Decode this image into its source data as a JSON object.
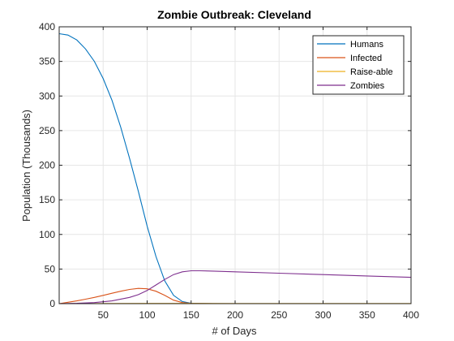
{
  "chart_data": {
    "type": "line",
    "title": "Zombie Outbreak: Cleveland",
    "xlabel": "# of Days",
    "ylabel": "Population (Thousands)",
    "xlim": [
      0,
      400
    ],
    "ylim": [
      0,
      400
    ],
    "xticks": [
      50,
      100,
      150,
      200,
      250,
      300,
      350,
      400
    ],
    "yticks": [
      0,
      50,
      100,
      150,
      200,
      250,
      300,
      350,
      400
    ],
    "grid": true,
    "legend_position": "top-right",
    "series": [
      {
        "name": "Humans",
        "color": "#0072BD",
        "x": [
          0,
          10,
          20,
          30,
          40,
          50,
          60,
          70,
          80,
          90,
          100,
          110,
          120,
          130,
          140,
          150,
          175,
          200,
          250,
          300,
          350,
          400
        ],
        "y": [
          390,
          388,
          381,
          368,
          350,
          325,
          294,
          255,
          210,
          162,
          112,
          68,
          33,
          12,
          3,
          0.5,
          0,
          0,
          0,
          0,
          0,
          0
        ]
      },
      {
        "name": "Infected",
        "color": "#D95319",
        "x": [
          0,
          10,
          20,
          30,
          40,
          50,
          60,
          70,
          80,
          90,
          100,
          110,
          120,
          130,
          140,
          150,
          175,
          200,
          250,
          300,
          350,
          400
        ],
        "y": [
          0,
          2,
          4,
          6.5,
          9,
          12,
          15,
          18,
          20.5,
          22,
          21.5,
          18,
          12,
          5,
          1.5,
          0.3,
          0,
          0,
          0,
          0,
          0,
          0
        ]
      },
      {
        "name": "Raise-able",
        "color": "#EDB120",
        "x": [
          0,
          50,
          100,
          150,
          200,
          250,
          300,
          350,
          400
        ],
        "y": [
          0,
          0.2,
          0.4,
          0.3,
          0.2,
          0.2,
          0.2,
          0.2,
          0.2
        ]
      },
      {
        "name": "Zombies",
        "color": "#7E2F8E",
        "x": [
          0,
          20,
          40,
          60,
          80,
          90,
          100,
          110,
          120,
          130,
          140,
          150,
          160,
          175,
          200,
          250,
          300,
          350,
          400
        ],
        "y": [
          0,
          0.5,
          1.5,
          4,
          9,
          13,
          19,
          27,
          35,
          42,
          46,
          47.5,
          47.5,
          47,
          46,
          44,
          42,
          40,
          38
        ]
      }
    ]
  }
}
